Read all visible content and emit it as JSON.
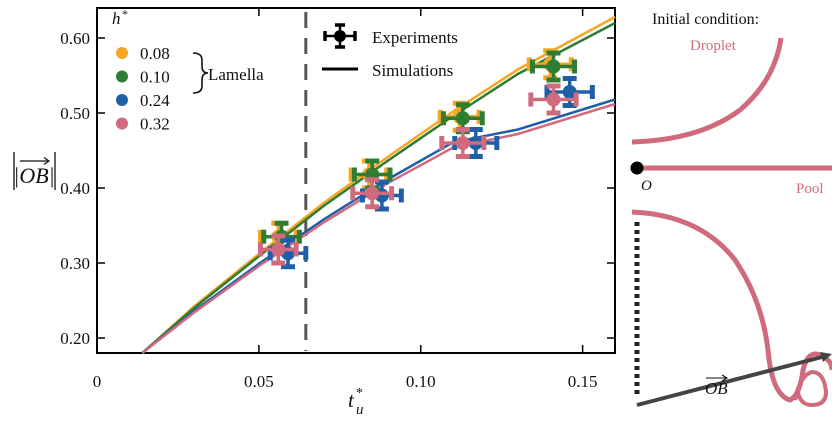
{
  "chart_data": {
    "type": "scatter",
    "ylabel": "|OB|",
    "xlabel_base": "t",
    "xlabel_sub": "u",
    "xlabel_sup": "*",
    "xlim": [
      0,
      0.16
    ],
    "ylim": [
      0.18,
      0.64
    ],
    "xticks": [
      0,
      0.05,
      0.1,
      0.15
    ],
    "xtick_labels": [
      "0",
      "0.05",
      "0.10",
      "0.15"
    ],
    "yticks": [
      0.2,
      0.3,
      0.4,
      0.5,
      0.6
    ],
    "ytick_labels": [
      "0.20",
      "0.30",
      "0.40",
      "0.50",
      "0.60"
    ],
    "vline_x": 0.0645,
    "legend_title_base": "h",
    "legend_title_sup": "*",
    "lamella_label": "Lamella",
    "style_legend": {
      "experiments": "Experiments",
      "simulations": "Simulations"
    },
    "series": [
      {
        "name": "0.08",
        "color": "#F5A623",
        "points": [
          {
            "x": 0.056,
            "y": 0.335,
            "xerr": 0.0055,
            "yerr": 0.018
          },
          {
            "x": 0.084,
            "y": 0.418,
            "xerr": 0.0055,
            "yerr": 0.018
          },
          {
            "x": 0.112,
            "y": 0.495,
            "xerr": 0.006,
            "yerr": 0.018
          },
          {
            "x": 0.14,
            "y": 0.565,
            "xerr": 0.0065,
            "yerr": 0.018
          }
        ],
        "curve": [
          [
            0.014,
            0.18
          ],
          [
            0.03,
            0.242
          ],
          [
            0.05,
            0.312
          ],
          [
            0.07,
            0.38
          ],
          [
            0.09,
            0.442
          ],
          [
            0.11,
            0.502
          ],
          [
            0.13,
            0.558
          ],
          [
            0.16,
            0.628
          ]
        ]
      },
      {
        "name": "0.10",
        "color": "#2E7D32",
        "points": [
          {
            "x": 0.057,
            "y": 0.335,
            "xerr": 0.0055,
            "yerr": 0.018
          },
          {
            "x": 0.085,
            "y": 0.418,
            "xerr": 0.0055,
            "yerr": 0.018
          },
          {
            "x": 0.113,
            "y": 0.493,
            "xerr": 0.006,
            "yerr": 0.018
          },
          {
            "x": 0.141,
            "y": 0.562,
            "xerr": 0.0065,
            "yerr": 0.018
          }
        ],
        "curve": [
          [
            0.014,
            0.18
          ],
          [
            0.03,
            0.24
          ],
          [
            0.05,
            0.309
          ],
          [
            0.07,
            0.376
          ],
          [
            0.09,
            0.437
          ],
          [
            0.11,
            0.496
          ],
          [
            0.13,
            0.552
          ],
          [
            0.16,
            0.62
          ]
        ]
      },
      {
        "name": "0.24",
        "color": "#1F5FA8",
        "points": [
          {
            "x": 0.059,
            "y": 0.313,
            "xerr": 0.0055,
            "yerr": 0.018
          },
          {
            "x": 0.088,
            "y": 0.39,
            "xerr": 0.006,
            "yerr": 0.018
          },
          {
            "x": 0.117,
            "y": 0.46,
            "xerr": 0.0065,
            "yerr": 0.018
          },
          {
            "x": 0.146,
            "y": 0.528,
            "xerr": 0.007,
            "yerr": 0.018
          }
        ],
        "curve": [
          [
            0.014,
            0.18
          ],
          [
            0.03,
            0.236
          ],
          [
            0.05,
            0.299
          ],
          [
            0.07,
            0.358
          ],
          [
            0.09,
            0.412
          ],
          [
            0.11,
            0.461
          ],
          [
            0.13,
            0.478
          ],
          [
            0.16,
            0.518
          ]
        ]
      },
      {
        "name": "0.32",
        "color": "#D06B7E",
        "points": [
          {
            "x": 0.056,
            "y": 0.318,
            "xerr": 0.0055,
            "yerr": 0.018
          },
          {
            "x": 0.085,
            "y": 0.393,
            "xerr": 0.006,
            "yerr": 0.018
          },
          {
            "x": 0.113,
            "y": 0.46,
            "xerr": 0.0065,
            "yerr": 0.018
          },
          {
            "x": 0.141,
            "y": 0.518,
            "xerr": 0.007,
            "yerr": 0.018
          }
        ],
        "curve": [
          [
            0.014,
            0.18
          ],
          [
            0.03,
            0.234
          ],
          [
            0.05,
            0.296
          ],
          [
            0.07,
            0.354
          ],
          [
            0.09,
            0.407
          ],
          [
            0.11,
            0.454
          ],
          [
            0.13,
            0.472
          ],
          [
            0.16,
            0.512
          ]
        ]
      }
    ]
  },
  "schematic": {
    "initial_condition_label": "Initial condition:",
    "droplet_label": "Droplet",
    "pool_label": "Pool",
    "origin_label": "O",
    "ob_label": "OB",
    "accent_color": "#D06B7E"
  }
}
